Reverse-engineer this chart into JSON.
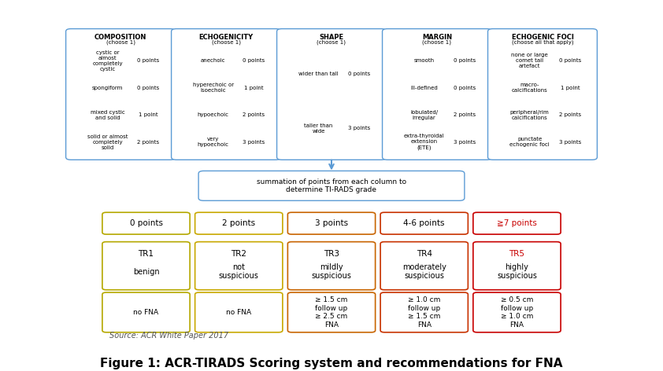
{
  "title": "Figure 1: ACR-TIRADS Scoring system and recommendations for FNA",
  "title_fontsize": 11,
  "bg_color": "#ffffff",
  "figure_size": [
    8.42,
    4.72
  ],
  "dpi": 100,
  "top_boxes": [
    {
      "label": "COMPOSITION\n(choose 1)",
      "items": [
        [
          "cystic or\nalmost\ncompletely\ncystic",
          "0 points"
        ],
        [
          "spongiform",
          "0 points"
        ],
        [
          "mixed cystic\nand solid",
          "1 point"
        ],
        [
          "solid or almost\ncompletely\nsolid",
          "2 points"
        ]
      ],
      "border_color": "#5b9bd5"
    },
    {
      "label": "ECHOGENICITY\n(choose 1)",
      "items": [
        [
          "anechoic",
          "0 points"
        ],
        [
          "hyperechoic or\nisoechoic",
          "1 point"
        ],
        [
          "hypoechoic",
          "2 points"
        ],
        [
          "very\nhypoechoic",
          "3 points"
        ]
      ],
      "border_color": "#5b9bd5"
    },
    {
      "label": "SHAPE\n(choose 1)",
      "items": [
        [
          "wider than tall",
          "0 points"
        ],
        [
          "taller than\nwide",
          "3 points"
        ]
      ],
      "border_color": "#5b9bd5"
    },
    {
      "label": "MARGIN\n(choose 1)",
      "items": [
        [
          "smooth",
          "0 points"
        ],
        [
          "ill-defined",
          "0 points"
        ],
        [
          "lobulated/\nirregular",
          "2 points"
        ],
        [
          "extra-thyroidal\nextension\n(ETE)",
          "3 points"
        ]
      ],
      "border_color": "#5b9bd5"
    },
    {
      "label": "ECHOGENIC FOCI\n(choose all that apply)",
      "items": [
        [
          "none or large\ncomet tail\nartefact",
          "0 points"
        ],
        [
          "macro-\ncalcifications",
          "1 point"
        ],
        [
          "peripheral/rim\ncalcifications",
          "2 points"
        ],
        [
          "punctate\nechogenic foci",
          "3 points"
        ]
      ],
      "border_color": "#5b9bd5"
    }
  ],
  "summation_box": "summation of points from each column to\ndetermine TI-RADS grade",
  "summation_border": "#5b9bd5",
  "points_row": [
    {
      "text": "0 points",
      "border": "#b5a800",
      "text_color": "#000000"
    },
    {
      "text": "2 points",
      "border": "#c8a800",
      "text_color": "#000000"
    },
    {
      "text": "3 points",
      "border": "#c86400",
      "text_color": "#000000"
    },
    {
      "text": "4-6 points",
      "border": "#c83200",
      "text_color": "#000000"
    },
    {
      "text": "≧7 points",
      "border": "#c80000",
      "text_color": "#c80000"
    }
  ],
  "tr_row": [
    {
      "tr": "TR1",
      "desc": "benign",
      "border": "#b5a800",
      "tr_color": "#000000"
    },
    {
      "tr": "TR2",
      "desc": "not\nsuspicious",
      "border": "#c8a800",
      "tr_color": "#000000"
    },
    {
      "tr": "TR3",
      "desc": "mildly\nsuspicious",
      "border": "#c86400",
      "tr_color": "#000000"
    },
    {
      "tr": "TR4",
      "desc": "moderately\nsuspicious",
      "border": "#c83200",
      "tr_color": "#000000"
    },
    {
      "tr": "TR5",
      "desc": "highly\nsuspicious",
      "border": "#c80000",
      "tr_color": "#c80000"
    }
  ],
  "fna_row": [
    {
      "text": "no FNA",
      "border": "#b5a800"
    },
    {
      "text": "no FNA",
      "border": "#c8a800"
    },
    {
      "text": "≥ 1.5 cm\nfollow up\n≥ 2.5 cm\nFNA",
      "border": "#c86400"
    },
    {
      "text": "≥ 1.0 cm\nfollow up\n≥ 1.5 cm\nFNA",
      "border": "#c83200"
    },
    {
      "text": "≥ 0.5 cm\nfollow up\n≥ 1.0 cm\nFNA",
      "border": "#c80000"
    }
  ],
  "source_text": "Source: ACR White Paper 2017",
  "source_fontsize": 7
}
